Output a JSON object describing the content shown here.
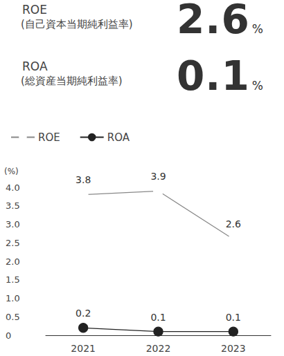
{
  "header": {
    "items": [
      {
        "label": "ROE",
        "description": "(自己資本当期純利益率)",
        "value": 2.6,
        "unit": "%"
      },
      {
        "label": "ROA",
        "description": "(総資産当期純利益率)",
        "value": 0.1,
        "unit": "%"
      }
    ]
  },
  "chart_data": {
    "type": "line",
    "categories": [
      "2021",
      "2022",
      "2023"
    ],
    "series": [
      {
        "name": "ROE",
        "color": "#888888",
        "marker": "open_circle",
        "values": [
          3.8,
          3.9,
          2.6
        ]
      },
      {
        "name": "ROA",
        "color": "#222222",
        "marker": "circle",
        "values": [
          0.2,
          0.1,
          0.1
        ]
      }
    ],
    "ylabel": "(%)",
    "ylim": [
      0,
      4
    ],
    "yticks": [
      0,
      0.5,
      {
        "value": 1,
        "label": "1.0"
      },
      1.5,
      {
        "value": 2,
        "label": "2.0"
      },
      2.5,
      {
        "value": 3,
        "label": "3.0"
      },
      3.5,
      {
        "value": 4,
        "label": "4.0"
      }
    ],
    "grid": false,
    "legend": "top-left",
    "data_labels": true
  }
}
